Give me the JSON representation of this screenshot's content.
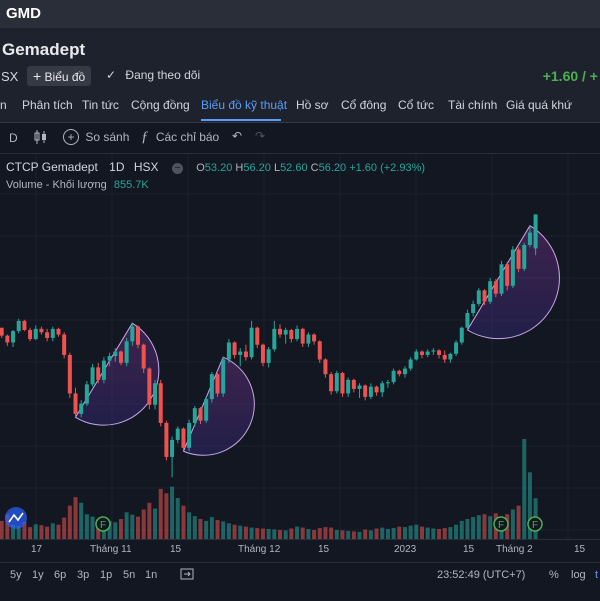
{
  "app": {
    "ticker": "GMD"
  },
  "header": {
    "company_name": "Gemadept",
    "exchange": "SX",
    "chart_button": "Biểu đồ",
    "follow_button": "Đang theo dõi",
    "change": "+1.60 / +"
  },
  "tabs": [
    "n",
    "Phân tích",
    "Tin tức",
    "Cộng đồng",
    "Biểu đồ kỹ thuật",
    "Hồ sơ",
    "Cổ đông",
    "Cổ tức",
    "Tài chính",
    "Giá quá khứ"
  ],
  "active_tab": "Biểu đồ kỹ thuật",
  "toolbar": {
    "interval": "D",
    "compare": "So sánh",
    "indicators": "Các chỉ báo"
  },
  "legend": {
    "name": "CTCP Gemadept",
    "interval": "1D",
    "exchange": "HSX",
    "open_label": "O",
    "open": "53.20",
    "high_label": "H",
    "high": "56.20",
    "low_label": "L",
    "low": "52.60",
    "close_label": "C",
    "close": "56.20",
    "change": "+1.60 (+2.93%)",
    "volume_label": "Volume - Khối lượng",
    "volume_value": "855.7K"
  },
  "xaxis_labels": [
    "17",
    "Tháng 11",
    "15",
    "Tháng 12",
    "15",
    "2023",
    "15",
    "Tháng 2",
    "15"
  ],
  "bottom": {
    "ranges": [
      "5y",
      "1y",
      "6p",
      "3p",
      "1p",
      "5n",
      "1n"
    ],
    "time": "23:52:49 (UTC+7)",
    "percent": "%",
    "log": "log",
    "auto": "t"
  },
  "colors": {
    "up": "#26a69a",
    "down": "#ef5350",
    "accent": "#5b9cf6"
  },
  "chart_data": {
    "type": "candlestick",
    "series": [
      {
        "name": "price",
        "ohlc": [
          [
            46.3,
            46.5,
            45.8,
            46.2
          ],
          [
            46.2,
            46.2,
            45.3,
            45.5
          ],
          [
            45.5,
            45.6,
            44.6,
            44.9
          ],
          [
            44.9,
            46.0,
            44.5,
            45.9
          ],
          [
            45.9,
            47.0,
            45.7,
            46.8
          ],
          [
            46.8,
            46.9,
            45.9,
            46.0
          ],
          [
            46.0,
            46.2,
            45.0,
            45.2
          ],
          [
            45.2,
            46.4,
            45.1,
            46.1
          ],
          [
            46.1,
            46.3,
            45.6,
            45.8
          ],
          [
            45.8,
            46.1,
            45.0,
            45.3
          ],
          [
            45.3,
            46.3,
            45.0,
            46.1
          ],
          [
            46.1,
            46.2,
            45.4,
            45.6
          ],
          [
            45.6,
            45.8,
            43.5,
            43.8
          ],
          [
            43.8,
            44.0,
            40.0,
            40.4
          ],
          [
            40.4,
            40.9,
            38.3,
            38.6
          ],
          [
            38.6,
            39.8,
            38.3,
            39.5
          ],
          [
            39.5,
            41.5,
            39.3,
            41.2
          ],
          [
            41.2,
            43.0,
            41.0,
            42.7
          ],
          [
            42.7,
            43.1,
            41.3,
            41.6
          ],
          [
            41.6,
            43.6,
            41.3,
            43.3
          ],
          [
            43.3,
            44.0,
            42.8,
            43.7
          ],
          [
            43.7,
            44.4,
            43.2,
            44.1
          ],
          [
            44.1,
            44.2,
            42.9,
            43.1
          ],
          [
            43.1,
            45.3,
            42.8,
            45.0
          ],
          [
            45.0,
            46.6,
            44.6,
            46.3
          ],
          [
            46.3,
            46.4,
            44.4,
            44.7
          ],
          [
            44.7,
            44.8,
            42.2,
            42.6
          ],
          [
            42.6,
            42.7,
            39.0,
            39.4
          ],
          [
            39.4,
            41.6,
            39.0,
            41.3
          ],
          [
            41.3,
            41.6,
            37.5,
            37.8
          ],
          [
            37.8,
            38.0,
            34.5,
            34.8
          ],
          [
            34.8,
            36.6,
            33.0,
            36.3
          ],
          [
            36.3,
            37.5,
            36.0,
            37.3
          ],
          [
            37.3,
            37.4,
            35.3,
            35.6
          ],
          [
            35.6,
            38.1,
            35.3,
            37.8
          ],
          [
            37.8,
            39.3,
            37.5,
            39.1
          ],
          [
            39.1,
            39.2,
            37.7,
            38.0
          ],
          [
            38.0,
            40.1,
            37.8,
            39.9
          ],
          [
            39.9,
            42.3,
            39.6,
            42.1
          ],
          [
            42.1,
            42.2,
            40.1,
            40.4
          ],
          [
            40.4,
            43.6,
            40.1,
            43.4
          ],
          [
            43.4,
            45.2,
            43.1,
            44.9
          ],
          [
            44.9,
            45.0,
            43.5,
            43.8
          ],
          [
            43.8,
            44.4,
            42.8,
            44.1
          ],
          [
            44.1,
            44.7,
            43.3,
            43.6
          ],
          [
            43.6,
            46.8,
            43.4,
            46.2
          ],
          [
            46.2,
            46.3,
            44.4,
            44.7
          ],
          [
            44.7,
            44.8,
            42.8,
            43.1
          ],
          [
            43.1,
            44.5,
            42.7,
            44.3
          ],
          [
            44.3,
            46.8,
            44.1,
            46.1
          ],
          [
            46.1,
            46.5,
            45.3,
            45.6
          ],
          [
            45.6,
            46.2,
            44.8,
            46.0
          ],
          [
            46.0,
            46.1,
            44.9,
            45.2
          ],
          [
            45.2,
            46.4,
            45.0,
            46.1
          ],
          [
            46.1,
            46.2,
            44.5,
            44.8
          ],
          [
            44.8,
            45.8,
            44.5,
            45.6
          ],
          [
            45.6,
            45.7,
            44.7,
            45.0
          ],
          [
            45.0,
            45.1,
            43.1,
            43.4
          ],
          [
            43.4,
            43.5,
            41.8,
            42.1
          ],
          [
            42.1,
            42.3,
            40.3,
            40.6
          ],
          [
            40.6,
            42.4,
            40.4,
            42.2
          ],
          [
            42.2,
            42.3,
            40.1,
            40.4
          ],
          [
            40.4,
            41.8,
            40.1,
            41.6
          ],
          [
            41.6,
            41.7,
            40.5,
            40.8
          ],
          [
            40.8,
            41.3,
            40.0,
            41.1
          ],
          [
            41.1,
            41.2,
            39.8,
            40.1
          ],
          [
            40.1,
            41.3,
            39.9,
            41.0
          ],
          [
            41.0,
            41.1,
            40.2,
            40.5
          ],
          [
            40.5,
            41.5,
            40.1,
            41.3
          ],
          [
            41.3,
            41.6,
            40.9,
            41.4
          ],
          [
            41.4,
            42.6,
            41.2,
            42.4
          ],
          [
            42.4,
            42.5,
            41.9,
            42.1
          ],
          [
            42.1,
            42.8,
            41.8,
            42.6
          ],
          [
            42.6,
            43.6,
            42.4,
            43.4
          ],
          [
            43.4,
            44.3,
            43.3,
            44.1
          ],
          [
            44.1,
            44.2,
            43.5,
            43.8
          ],
          [
            43.8,
            44.3,
            43.6,
            44.1
          ],
          [
            44.1,
            44.4,
            43.8,
            44.2
          ],
          [
            44.2,
            44.3,
            43.5,
            43.8
          ],
          [
            43.8,
            44.2,
            43.1,
            43.4
          ],
          [
            43.4,
            44.0,
            43.1,
            43.9
          ],
          [
            43.9,
            45.1,
            43.7,
            44.9
          ],
          [
            44.9,
            46.3,
            44.7,
            46.2
          ],
          [
            46.2,
            47.8,
            46.0,
            47.5
          ],
          [
            47.5,
            48.6,
            47.2,
            48.3
          ],
          [
            48.3,
            49.7,
            48.1,
            49.5
          ],
          [
            49.5,
            49.6,
            48.2,
            48.5
          ],
          [
            48.5,
            50.6,
            48.3,
            50.3
          ],
          [
            50.3,
            50.5,
            48.9,
            49.2
          ],
          [
            49.2,
            52.1,
            49.0,
            51.8
          ],
          [
            51.8,
            52.0,
            49.5,
            49.9
          ],
          [
            49.9,
            53.4,
            49.7,
            53.1
          ],
          [
            53.1,
            53.3,
            51.1,
            51.4
          ],
          [
            51.4,
            53.7,
            51.2,
            53.5
          ],
          [
            53.5,
            55.2,
            53.3,
            54.6
          ],
          [
            53.2,
            56.2,
            52.6,
            56.2
          ]
        ]
      }
    ],
    "volume": [
      420,
      380,
      520,
      300,
      280,
      360,
      250,
      310,
      290,
      260,
      330,
      300,
      450,
      700,
      880,
      760,
      520,
      470,
      410,
      440,
      380,
      350,
      420,
      560,
      510,
      470,
      620,
      760,
      640,
      1050,
      960,
      1100,
      860,
      700,
      560,
      480,
      420,
      380,
      460,
      400,
      370,
      330,
      300,
      280,
      260,
      240,
      230,
      220,
      210,
      200,
      190,
      180,
      220,
      260,
      240,
      210,
      190,
      230,
      250,
      240,
      190,
      180,
      170,
      160,
      150,
      200,
      180,
      220,
      240,
      210,
      230,
      260,
      250,
      280,
      300,
      260,
      240,
      220,
      210,
      230,
      250,
      300,
      380,
      420,
      460,
      500,
      520,
      480,
      540,
      460,
      520,
      620,
      700,
      2100,
      1400,
      855.7
    ],
    "x_ticks": [
      "17",
      "Tháng 11",
      "15",
      "Tháng 12",
      "15",
      "2023",
      "15",
      "Tháng 2",
      "15"
    ],
    "annotations": [
      "F",
      "F",
      "F"
    ],
    "ylim": [
      28,
      58
    ]
  }
}
